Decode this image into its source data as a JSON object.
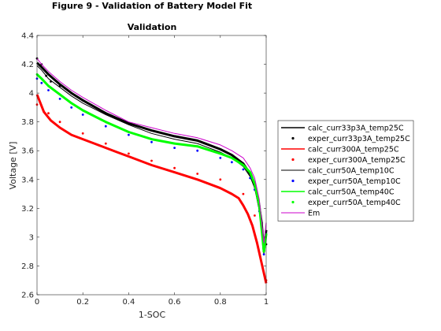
{
  "figure_title": "Figure 9 - Validation of Battery Model Fit",
  "chart_data": {
    "type": "line",
    "title": "Validation",
    "xlabel": "1-SOC",
    "ylabel": "Voltage [V]",
    "xlim": [
      0,
      1
    ],
    "ylim": [
      2.6,
      4.4
    ],
    "xticks": [
      "0",
      "0.2",
      "0.4",
      "0.6",
      "0.8",
      "1"
    ],
    "yticks": [
      "2.6",
      "2.8",
      "3",
      "3.2",
      "3.4",
      "3.6",
      "3.8",
      "4",
      "4.2",
      "4.4"
    ],
    "grid": false,
    "legend_position": "right",
    "series": [
      {
        "name": "calc_curr33p3A_temp25C",
        "style": "line",
        "color": "#000000",
        "width": 3,
        "x": [
          0,
          0.02,
          0.05,
          0.1,
          0.15,
          0.2,
          0.3,
          0.4,
          0.5,
          0.6,
          0.7,
          0.8,
          0.85,
          0.9,
          0.93,
          0.95,
          0.96,
          0.97,
          0.98,
          0.99,
          1.0
        ],
        "y": [
          4.21,
          4.18,
          4.13,
          4.06,
          4.0,
          3.95,
          3.86,
          3.79,
          3.74,
          3.7,
          3.67,
          3.61,
          3.57,
          3.51,
          3.44,
          3.36,
          3.29,
          3.21,
          3.1,
          2.9,
          3.05
        ]
      },
      {
        "name": "exper_curr33p3A_temp25C",
        "style": "dots",
        "color": "#000000",
        "x": [
          0,
          0.02,
          0.04,
          0.06,
          0.1,
          0.15,
          0.2,
          0.3,
          0.4,
          0.5,
          0.6,
          0.7,
          0.8,
          0.9,
          0.95,
          0.98,
          1.0
        ],
        "y": [
          4.24,
          4.2,
          4.12,
          4.08,
          4.05,
          4.0,
          3.95,
          3.86,
          3.79,
          3.74,
          3.7,
          3.67,
          3.61,
          3.51,
          3.36,
          3.1,
          2.95
        ]
      },
      {
        "name": "calc_curr300A_temp25C",
        "style": "line",
        "color": "#ff0000",
        "width": 3,
        "x": [
          0,
          0.03,
          0.06,
          0.1,
          0.15,
          0.2,
          0.25,
          0.3,
          0.35,
          0.4,
          0.5,
          0.6,
          0.7,
          0.8,
          0.85,
          0.88,
          0.9,
          0.92,
          0.94,
          0.96,
          0.98,
          1.0
        ],
        "y": [
          3.99,
          3.87,
          3.81,
          3.76,
          3.71,
          3.68,
          3.65,
          3.62,
          3.59,
          3.56,
          3.5,
          3.45,
          3.4,
          3.34,
          3.3,
          3.27,
          3.22,
          3.16,
          3.08,
          2.96,
          2.82,
          2.68
        ]
      },
      {
        "name": "exper_curr300A_temp25C",
        "style": "dots",
        "color": "#ff0000",
        "x": [
          0,
          0.05,
          0.1,
          0.2,
          0.3,
          0.4,
          0.5,
          0.6,
          0.7,
          0.8,
          0.9,
          0.95,
          1.0
        ],
        "y": [
          3.92,
          3.86,
          3.8,
          3.72,
          3.65,
          3.58,
          3.53,
          3.48,
          3.44,
          3.4,
          3.3,
          3.15,
          2.7
        ]
      },
      {
        "name": "calc_curr50A_temp10C",
        "style": "line",
        "color": "#000000",
        "width": 1,
        "x": [
          0,
          0.02,
          0.05,
          0.1,
          0.15,
          0.2,
          0.3,
          0.4,
          0.5,
          0.6,
          0.7,
          0.8,
          0.85,
          0.9,
          0.93,
          0.95,
          0.97,
          0.99,
          1.0
        ],
        "y": [
          4.19,
          4.16,
          4.1,
          4.04,
          3.98,
          3.93,
          3.85,
          3.78,
          3.72,
          3.68,
          3.65,
          3.59,
          3.55,
          3.49,
          3.42,
          3.34,
          3.19,
          2.88,
          3.0
        ]
      },
      {
        "name": "exper_curr50A_temp10C",
        "style": "dots",
        "color": "#0000ff",
        "x": [
          0,
          0.02,
          0.05,
          0.1,
          0.15,
          0.2,
          0.3,
          0.4,
          0.5,
          0.6,
          0.7,
          0.8,
          0.85,
          0.9,
          0.93,
          0.95,
          0.97,
          0.99,
          1.0
        ],
        "y": [
          4.1,
          4.07,
          4.02,
          3.96,
          3.9,
          3.85,
          3.77,
          3.71,
          3.66,
          3.62,
          3.6,
          3.55,
          3.52,
          3.47,
          3.41,
          3.33,
          3.18,
          2.88,
          3.02
        ]
      },
      {
        "name": "calc_curr50A_temp40C",
        "style": "line",
        "color": "#00ff00",
        "width": 3,
        "x": [
          0,
          0.02,
          0.05,
          0.1,
          0.15,
          0.2,
          0.3,
          0.4,
          0.5,
          0.6,
          0.7,
          0.8,
          0.85,
          0.9,
          0.93,
          0.95,
          0.97,
          0.99,
          1.0
        ],
        "y": [
          4.13,
          4.1,
          4.05,
          3.99,
          3.93,
          3.88,
          3.8,
          3.73,
          3.68,
          3.65,
          3.63,
          3.58,
          3.55,
          3.5,
          3.45,
          3.37,
          3.22,
          2.9,
          3.02
        ]
      },
      {
        "name": "exper_curr50A_temp40C",
        "style": "dots",
        "color": "#00ff00",
        "x": [
          0,
          0.05,
          0.1,
          0.2,
          0.3,
          0.4,
          0.5,
          0.6,
          0.7,
          0.8,
          0.9,
          0.95,
          1.0
        ],
        "y": [
          4.13,
          4.05,
          3.99,
          3.88,
          3.8,
          3.73,
          3.68,
          3.65,
          3.63,
          3.58,
          3.5,
          3.37,
          3.02
        ]
      },
      {
        "name": "Em",
        "style": "line",
        "color": "#cc00cc",
        "width": 1,
        "x": [
          0,
          0.02,
          0.05,
          0.1,
          0.15,
          0.2,
          0.3,
          0.4,
          0.5,
          0.6,
          0.7,
          0.8,
          0.85,
          0.9,
          0.93,
          0.95,
          0.97,
          0.99,
          1.0
        ],
        "y": [
          4.24,
          4.2,
          4.15,
          4.08,
          4.02,
          3.97,
          3.88,
          3.8,
          3.76,
          3.72,
          3.69,
          3.64,
          3.6,
          3.55,
          3.48,
          3.41,
          3.26,
          2.96,
          3.1
        ]
      }
    ]
  }
}
